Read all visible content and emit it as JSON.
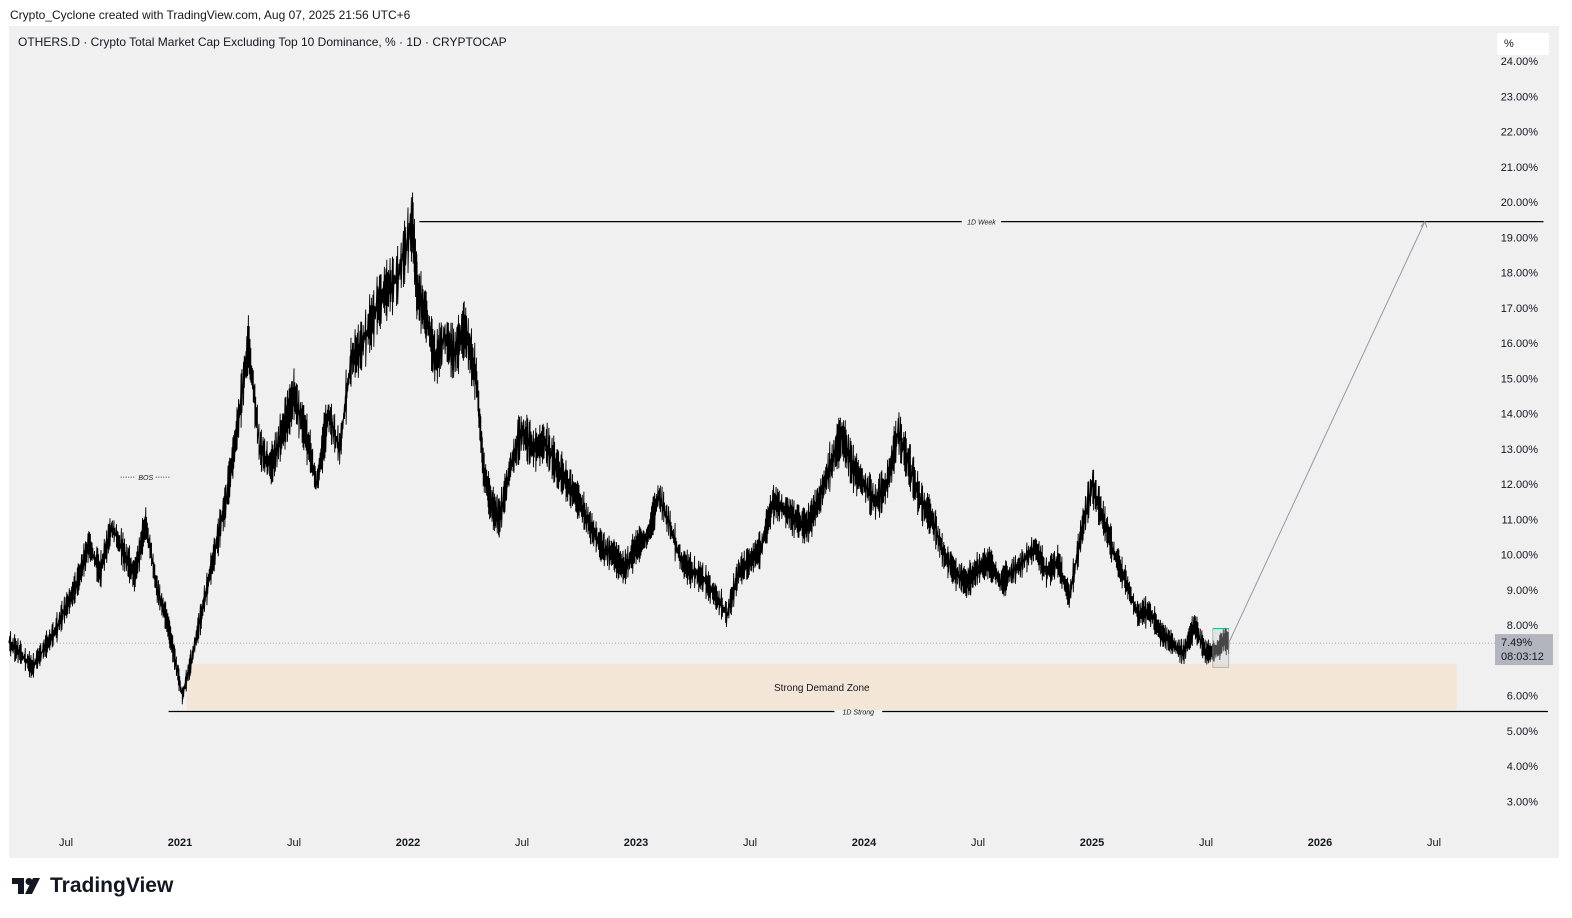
{
  "caption": "Crypto_Cyclone created with TradingView.com, Aug 07, 2025 21:56 UTC+6",
  "symbol_title": "OTHERS.D · Crypto Total Market Cap Excluding Top 10 Dominance, % · 1D · CRYPTOCAP",
  "unit_label": "%",
  "brand": "TradingView",
  "icons": {
    "brand": "tradingview-logo-icon"
  },
  "colors": {
    "background": "#f0f0f0",
    "price_line": "#000000",
    "demand_zone": "#f3e6d6",
    "projection": "#9598a1",
    "price_label_bg": "#b2b5be"
  },
  "chart_data": {
    "type": "line",
    "title": "OTHERS.D · Crypto Total Market Cap Excluding Top 10 Dominance, % · 1D · CRYPTOCAP",
    "xlabel": "",
    "ylabel": "%",
    "ylim": [
      2.3,
      25
    ],
    "xlim": [
      2020.25,
      2026.75
    ],
    "y_ticks": [
      "3.00%",
      "4.00%",
      "5.00%",
      "6.00%",
      "7.00%",
      "8.00%",
      "9.00%",
      "10.00%",
      "11.00%",
      "12.00%",
      "13.00%",
      "14.00%",
      "15.00%",
      "16.00%",
      "17.00%",
      "18.00%",
      "19.00%",
      "20.00%",
      "21.00%",
      "22.00%",
      "23.00%",
      "24.00%"
    ],
    "y_tick_values": [
      3,
      4,
      5,
      6,
      7,
      8,
      9,
      10,
      11,
      12,
      13,
      14,
      15,
      16,
      17,
      18,
      19,
      20,
      21,
      22,
      23,
      24
    ],
    "x_ticks": [
      {
        "label": "Jul",
        "x": 2020.5,
        "bold": false
      },
      {
        "label": "2021",
        "x": 2021.0,
        "bold": true
      },
      {
        "label": "Jul",
        "x": 2021.5,
        "bold": false
      },
      {
        "label": "2022",
        "x": 2022.0,
        "bold": true
      },
      {
        "label": "Jul",
        "x": 2022.5,
        "bold": false
      },
      {
        "label": "2023",
        "x": 2023.0,
        "bold": true
      },
      {
        "label": "Jul",
        "x": 2023.5,
        "bold": false
      },
      {
        "label": "2024",
        "x": 2024.0,
        "bold": true
      },
      {
        "label": "Jul",
        "x": 2024.5,
        "bold": false
      },
      {
        "label": "2025",
        "x": 2025.0,
        "bold": true
      },
      {
        "label": "Jul",
        "x": 2025.5,
        "bold": false
      },
      {
        "label": "2026",
        "x": 2026.0,
        "bold": true
      },
      {
        "label": "Jul",
        "x": 2026.5,
        "bold": false
      }
    ],
    "series": [
      {
        "name": "OTHERS.D",
        "x": [
          2020.25,
          2020.3,
          2020.35,
          2020.4,
          2020.45,
          2020.5,
          2020.55,
          2020.6,
          2020.65,
          2020.7,
          2020.75,
          2020.8,
          2020.85,
          2020.9,
          2020.94,
          2020.97,
          2021.01,
          2021.05,
          2021.1,
          2021.15,
          2021.2,
          2021.25,
          2021.3,
          2021.35,
          2021.4,
          2021.45,
          2021.5,
          2021.55,
          2021.6,
          2021.65,
          2021.7,
          2021.75,
          2021.8,
          2021.85,
          2021.9,
          2021.95,
          2022.02,
          2022.04,
          2022.08,
          2022.12,
          2022.16,
          2022.2,
          2022.25,
          2022.3,
          2022.33,
          2022.36,
          2022.4,
          2022.45,
          2022.5,
          2022.55,
          2022.6,
          2022.65,
          2022.7,
          2022.75,
          2022.8,
          2022.85,
          2022.9,
          2022.95,
          2023.0,
          2023.05,
          2023.1,
          2023.15,
          2023.2,
          2023.25,
          2023.3,
          2023.35,
          2023.4,
          2023.45,
          2023.5,
          2023.55,
          2023.6,
          2023.65,
          2023.7,
          2023.75,
          2023.8,
          2023.85,
          2023.9,
          2023.95,
          2024.0,
          2024.05,
          2024.1,
          2024.15,
          2024.2,
          2024.25,
          2024.3,
          2024.35,
          2024.4,
          2024.45,
          2024.5,
          2024.55,
          2024.6,
          2024.65,
          2024.7,
          2024.75,
          2024.8,
          2024.85,
          2024.9,
          2024.95,
          2025.0,
          2025.05,
          2025.1,
          2025.15,
          2025.2,
          2025.25,
          2025.3,
          2025.35,
          2025.4,
          2025.45,
          2025.5,
          2025.55,
          2025.58,
          2025.6
        ],
        "values": [
          7.5,
          7.2,
          6.8,
          7.3,
          7.8,
          8.5,
          9.2,
          10.3,
          9.5,
          10.8,
          10.1,
          9.4,
          10.9,
          9.0,
          8.2,
          7.3,
          6.0,
          7.0,
          8.5,
          10.0,
          11.5,
          13.5,
          16.0,
          13.0,
          12.5,
          13.5,
          14.5,
          13.5,
          12.0,
          14.0,
          13.0,
          15.5,
          16.0,
          16.8,
          17.5,
          17.8,
          19.4,
          17.5,
          16.8,
          15.5,
          16.2,
          15.7,
          16.4,
          15.0,
          12.5,
          11.5,
          11.0,
          12.5,
          13.5,
          13.0,
          13.2,
          12.5,
          12.0,
          11.5,
          10.8,
          10.2,
          10.0,
          9.6,
          10.2,
          10.5,
          11.7,
          10.8,
          9.8,
          9.5,
          9.3,
          8.8,
          8.3,
          9.5,
          9.8,
          10.2,
          11.5,
          11.3,
          11.0,
          10.8,
          11.5,
          12.5,
          13.4,
          12.5,
          12.0,
          11.5,
          12.0,
          13.5,
          12.5,
          11.5,
          11.0,
          10.0,
          9.5,
          9.2,
          9.6,
          9.8,
          9.2,
          9.5,
          9.8,
          10.2,
          9.5,
          9.8,
          8.8,
          10.5,
          12.0,
          11.0,
          10.0,
          9.2,
          8.3,
          8.4,
          7.8,
          7.5,
          7.2,
          8.0,
          7.2,
          7.3,
          7.6,
          7.49
        ]
      }
    ],
    "last_value": {
      "value": 7.49,
      "label": "7.49%",
      "countdown": "08:03:12"
    },
    "annotations": [
      {
        "label": "1D Week",
        "type": "horizontal-level",
        "y": 19.45,
        "x_start": 2022.05,
        "x_end": 2026.98
      },
      {
        "label": "1D Strong",
        "type": "horizontal-level",
        "y": 5.55,
        "x_start": 2020.95,
        "x_end": 2027.0
      },
      {
        "label": "BOS",
        "type": "dotted-level",
        "y": 12.2,
        "x_start": 2020.74,
        "x_end": 2020.96
      },
      {
        "label": "Strong Demand Zone",
        "type": "zone",
        "y_range": [
          5.6,
          6.9
        ],
        "x_start": 2021.03,
        "x_end": 2026.6
      },
      {
        "label": "",
        "type": "projection",
        "from": [
          2025.6,
          7.5
        ],
        "to": [
          2026.46,
          19.45
        ]
      }
    ]
  }
}
